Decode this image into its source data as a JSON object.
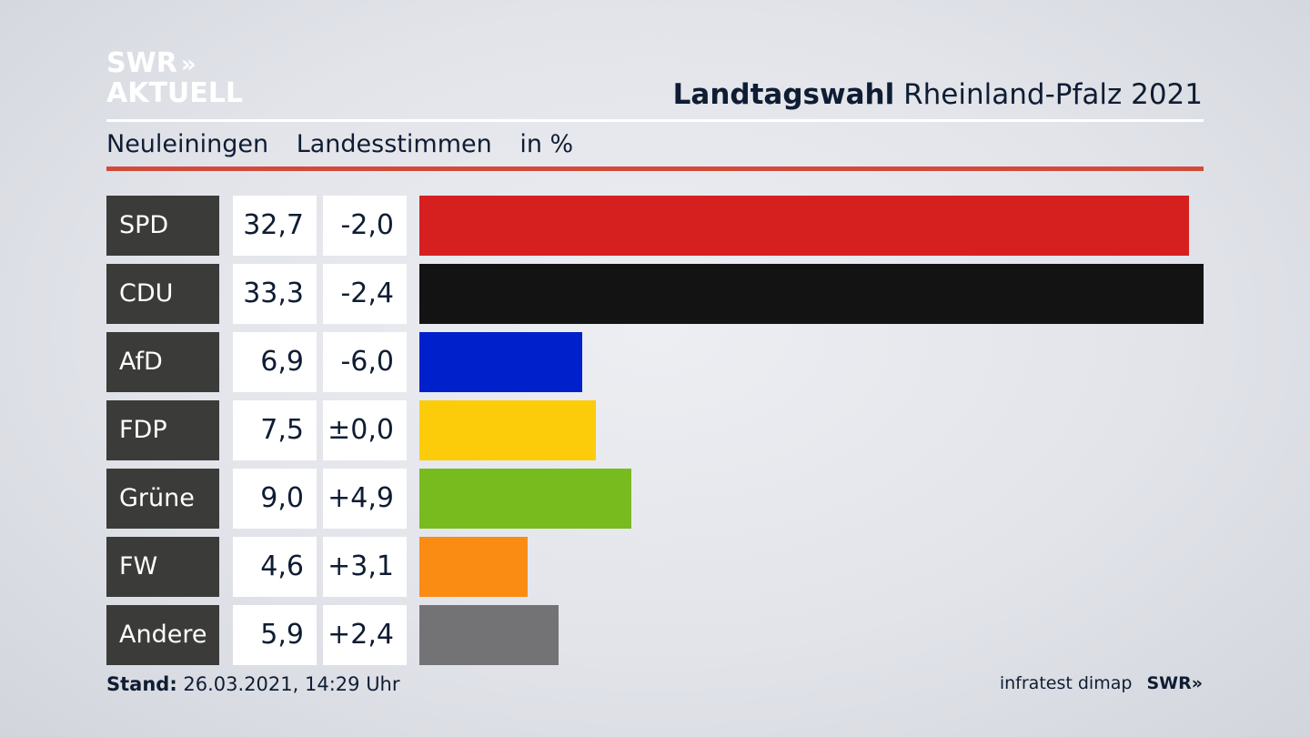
{
  "logo": {
    "line1": "SWR",
    "chevrons": "»",
    "line2": "AKTUELL"
  },
  "header": {
    "title_bold": "Landtagswahl",
    "title_rest": "Rheinland-Pfalz 2021"
  },
  "subtitle": {
    "place": "Neuleiningen",
    "type": "Landesstimmen",
    "unit": "in %"
  },
  "colors": {
    "accent_rule": "#d24b3a",
    "party_label_bg": "#3b3b39"
  },
  "chart_data": {
    "type": "bar",
    "orientation": "horizontal",
    "categories": [
      "SPD",
      "CDU",
      "AfD",
      "FDP",
      "Grüne",
      "FW",
      "Andere"
    ],
    "values": [
      32.7,
      33.3,
      6.9,
      7.5,
      9.0,
      4.6,
      5.9
    ],
    "value_labels": [
      "32,7",
      "33,3",
      "6,9",
      "7,5",
      "9,0",
      "4,6",
      "5,9"
    ],
    "diff_labels": [
      "-2,0",
      "-2,4",
      "-6,0",
      "±0,0",
      "+4,9",
      "+3,1",
      "+2,4"
    ],
    "colors": [
      "#d61f1f",
      "#131313",
      "#0020cc",
      "#fccc0a",
      "#78bb1e",
      "#fa8c14",
      "#737375"
    ],
    "xlim": [
      0,
      33.3
    ],
    "grid": false
  },
  "footer": {
    "stand_label": "Stand:",
    "stand_value": "26.03.2021, 14:29 Uhr",
    "source": "infratest dimap",
    "brand": "SWR»"
  }
}
